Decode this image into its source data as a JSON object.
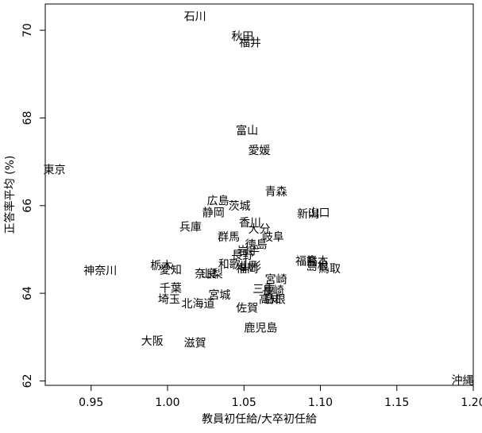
{
  "chart_data": {
    "type": "scatter",
    "title": "",
    "xlabel": "教員初任給/大卒初任給",
    "ylabel": "正答率平均 (%)",
    "xlim": [
      0.92,
      1.2
    ],
    "ylim": [
      61.9,
      70.6
    ],
    "grid": false,
    "x_ticks": [
      "0.95",
      "1.00",
      "1.05",
      "1.10",
      "1.15",
      "1.20"
    ],
    "y_ticks": [
      "62",
      "64",
      "66",
      "68",
      "70"
    ],
    "points": [
      {
        "label": "石川",
        "x": 1.018,
        "y": 70.3
      },
      {
        "label": "秋田",
        "x": 1.049,
        "y": 69.85
      },
      {
        "label": "福井",
        "x": 1.054,
        "y": 69.7
      },
      {
        "label": "富山",
        "x": 1.052,
        "y": 67.7
      },
      {
        "label": "愛媛",
        "x": 1.06,
        "y": 67.25
      },
      {
        "label": "東京",
        "x": 0.926,
        "y": 66.8
      },
      {
        "label": "青森",
        "x": 1.071,
        "y": 66.3
      },
      {
        "label": "広島",
        "x": 1.033,
        "y": 66.1
      },
      {
        "label": "茨城",
        "x": 1.047,
        "y": 65.98
      },
      {
        "label": "静岡",
        "x": 1.03,
        "y": 65.82
      },
      {
        "label": "新潟",
        "x": 1.092,
        "y": 65.8
      },
      {
        "label": "山口",
        "x": 1.099,
        "y": 65.82
      },
      {
        "label": "香川",
        "x": 1.054,
        "y": 65.6
      },
      {
        "label": "大分",
        "x": 1.06,
        "y": 65.45
      },
      {
        "label": "兵庫",
        "x": 1.015,
        "y": 65.5
      },
      {
        "label": "群馬",
        "x": 1.04,
        "y": 65.27
      },
      {
        "label": "岐阜",
        "x": 1.069,
        "y": 65.27
      },
      {
        "label": "徳島",
        "x": 1.058,
        "y": 65.1
      },
      {
        "label": "岩手",
        "x": 1.053,
        "y": 64.95
      },
      {
        "label": "長野",
        "x": 1.049,
        "y": 64.85
      },
      {
        "label": "福島",
        "x": 1.091,
        "y": 64.72
      },
      {
        "label": "熊本",
        "x": 1.098,
        "y": 64.72
      },
      {
        "label": "和歌山",
        "x": 1.044,
        "y": 64.65
      },
      {
        "label": "山形",
        "x": 1.054,
        "y": 64.6
      },
      {
        "label": "福岡",
        "x": 1.052,
        "y": 64.55
      },
      {
        "label": "鳥取",
        "x": 1.106,
        "y": 64.55
      },
      {
        "label": "島根",
        "x": 1.098,
        "y": 64.6
      },
      {
        "label": "栃木",
        "x": 0.996,
        "y": 64.62
      },
      {
        "label": "愛知",
        "x": 1.002,
        "y": 64.52
      },
      {
        "label": "神奈川",
        "x": 0.956,
        "y": 64.5
      },
      {
        "label": "奈良",
        "x": 1.025,
        "y": 64.43
      },
      {
        "label": "山梨",
        "x": 1.029,
        "y": 64.43
      },
      {
        "label": "宮崎",
        "x": 1.071,
        "y": 64.3
      },
      {
        "label": "千葉",
        "x": 1.002,
        "y": 64.1
      },
      {
        "label": "三重",
        "x": 1.063,
        "y": 64.08
      },
      {
        "label": "長崎",
        "x": 1.069,
        "y": 64.05
      },
      {
        "label": "宮城",
        "x": 1.034,
        "y": 63.95
      },
      {
        "label": "埼玉",
        "x": 1.001,
        "y": 63.85
      },
      {
        "label": "高知",
        "x": 1.067,
        "y": 63.85
      },
      {
        "label": "島根",
        "x": 1.07,
        "y": 63.85
      },
      {
        "label": "北海道",
        "x": 1.02,
        "y": 63.75
      },
      {
        "label": "佐賀",
        "x": 1.052,
        "y": 63.65
      },
      {
        "label": "鹿児島",
        "x": 1.061,
        "y": 63.2
      },
      {
        "label": "大阪",
        "x": 0.99,
        "y": 62.9
      },
      {
        "label": "滋賀",
        "x": 1.018,
        "y": 62.85
      },
      {
        "label": "沖縄",
        "x": 1.193,
        "y": 62.0
      }
    ]
  }
}
